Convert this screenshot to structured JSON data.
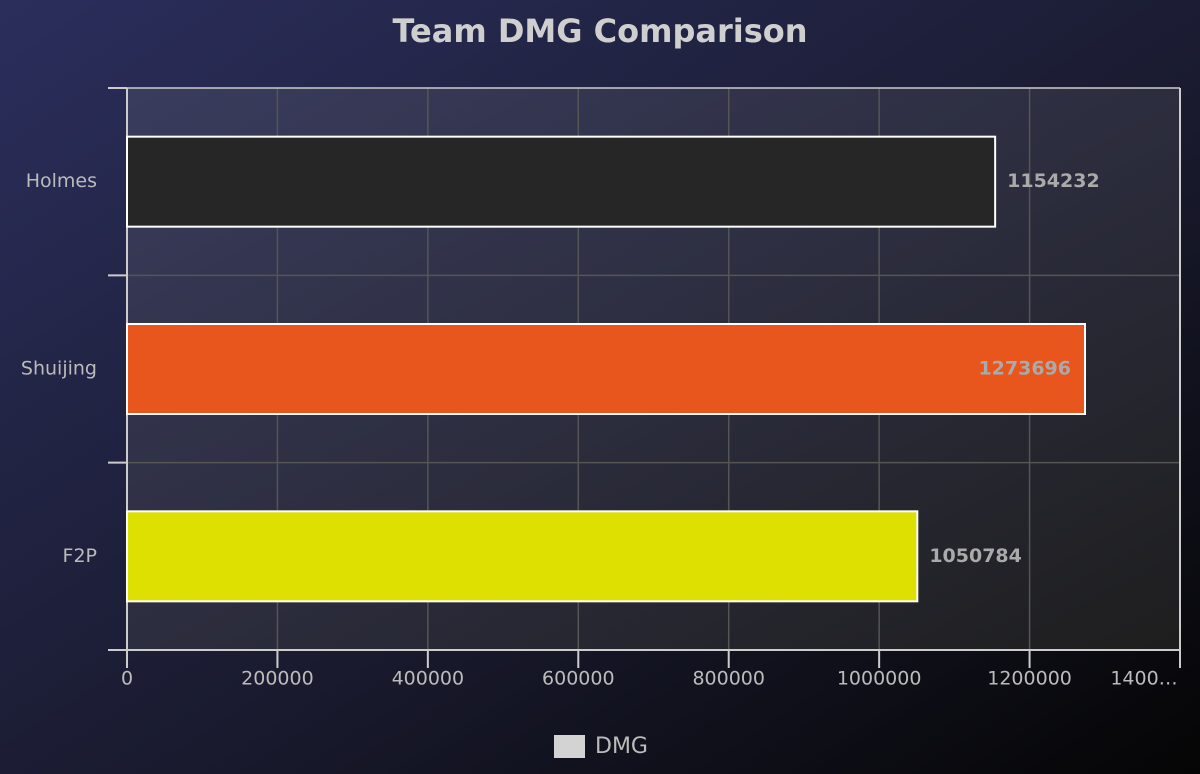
{
  "chart_data": {
    "type": "hbar",
    "title": "Team DMG Comparison",
    "categories": [
      "Holmes",
      "Shuijing",
      "F2P"
    ],
    "series": [
      {
        "name": "DMG",
        "color": "#d3d3d3",
        "values": [
          1154232,
          1273696,
          1050784
        ],
        "bar_colors": [
          "#262626",
          "#e8561e",
          "#dde000"
        ]
      }
    ],
    "xlim": [
      0,
      1400000
    ],
    "xticks": [
      0,
      200000,
      400000,
      600000,
      800000,
      1000000,
      1200000,
      {
        "value": 1400000,
        "label": "1400…"
      }
    ],
    "grid": true,
    "legend": "bottom"
  }
}
